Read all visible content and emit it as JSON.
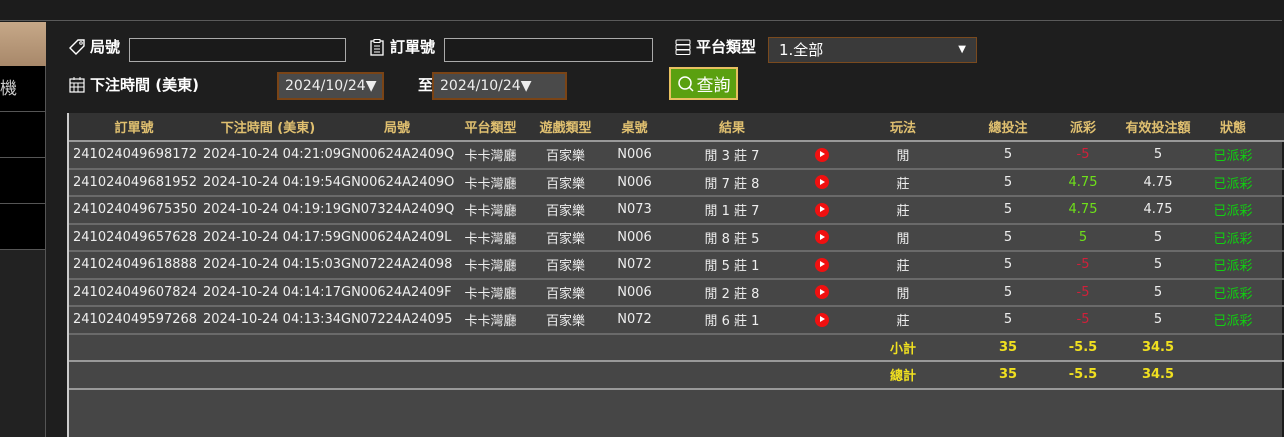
{
  "sidebar": {
    "items": [
      "機",
      "",
      "",
      ""
    ]
  },
  "filters": {
    "round_label": "局號",
    "round_value": "",
    "order_label": "訂單號",
    "order_value": "",
    "platform_label": "平台類型",
    "platform_value": "1.全部",
    "time_label": "下注時間 (美東)",
    "date_from": "2024/10/24",
    "to_label": "至",
    "date_to": "2024/10/24",
    "search_label": "查詢"
  },
  "table": {
    "headers": [
      "訂單號",
      "下注時間 (美東)",
      "局號",
      "平台類型",
      "遊戲類型",
      "桌號",
      "結果",
      "",
      "玩法",
      "總投注",
      "派彩",
      "有效投注額",
      "狀態"
    ],
    "rows": [
      [
        "241024049698172",
        "2024-10-24 04:21:09",
        "GN00624A2409Q",
        "卡卡灣廳",
        "百家樂",
        "N006",
        "閒 3 莊 7",
        "閒",
        "5",
        "-5",
        "5",
        "已派彩"
      ],
      [
        "241024049681952",
        "2024-10-24 04:19:54",
        "GN00624A2409O",
        "卡卡灣廳",
        "百家樂",
        "N006",
        "閒 7 莊 8",
        "莊",
        "5",
        "4.75",
        "4.75",
        "已派彩"
      ],
      [
        "241024049675350",
        "2024-10-24 04:19:19",
        "GN07324A2409Q",
        "卡卡灣廳",
        "百家樂",
        "N073",
        "閒 1 莊 7",
        "莊",
        "5",
        "4.75",
        "4.75",
        "已派彩"
      ],
      [
        "241024049657628",
        "2024-10-24 04:17:59",
        "GN00624A2409L",
        "卡卡灣廳",
        "百家樂",
        "N006",
        "閒 8 莊 5",
        "閒",
        "5",
        "5",
        "5",
        "已派彩"
      ],
      [
        "241024049618888",
        "2024-10-24 04:15:03",
        "GN07224A24098",
        "卡卡灣廳",
        "百家樂",
        "N072",
        "閒 5 莊 1",
        "莊",
        "5",
        "-5",
        "5",
        "已派彩"
      ],
      [
        "241024049607824",
        "2024-10-24 04:14:17",
        "GN00624A2409F",
        "卡卡灣廳",
        "百家樂",
        "N006",
        "閒 2 莊 8",
        "閒",
        "5",
        "-5",
        "5",
        "已派彩"
      ],
      [
        "241024049597268",
        "2024-10-24 04:13:34",
        "GN07224A24095",
        "卡卡灣廳",
        "百家樂",
        "N072",
        "閒 6 莊 1",
        "莊",
        "5",
        "-5",
        "5",
        "已派彩"
      ]
    ],
    "subtotal": {
      "label": "小計",
      "bet": "35",
      "payout": "-5.5",
      "valid": "34.5"
    },
    "total": {
      "label": "總計",
      "bet": "35",
      "payout": "-5.5",
      "valid": "34.5"
    }
  },
  "colors": {
    "header_text": "#e0c070",
    "negative": "#d0203a",
    "positive": "#6ee01a",
    "status": "#10d010",
    "summary": "#f0e020",
    "button": "#5aa010"
  }
}
